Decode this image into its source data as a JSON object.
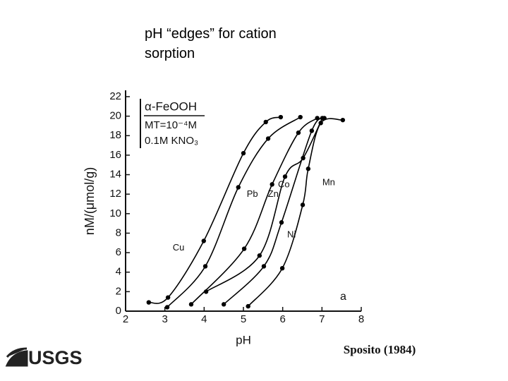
{
  "chart_data": {
    "type": "line",
    "title": "pH “edges” for cation sorption",
    "x_label": "pH",
    "y_label": "nM/(μmol/g)",
    "xlim": [
      2,
      8
    ],
    "xticks": [
      2,
      3,
      4,
      5,
      6,
      7,
      8
    ],
    "ylim": [
      0,
      22
    ],
    "yticks": [
      0,
      2,
      4,
      6,
      8,
      10,
      12,
      14,
      16,
      18,
      20,
      22
    ],
    "grid": false,
    "annotations": [
      "α-FeOOH",
      "MT=10⁻⁴M",
      "0.1M KNO₃",
      "a"
    ],
    "series": [
      {
        "name": "Cu",
        "color": "#000000",
        "x": [
          2.59,
          3.08,
          3.99,
          5.0,
          5.57,
          5.95
        ],
        "values": [
          0.9,
          1.4,
          7.2,
          16.2,
          19.4,
          19.9
        ]
      },
      {
        "name": "Pb",
        "color": "#000000",
        "x": [
          3.06,
          4.03,
          4.87,
          5.63,
          6.45
        ],
        "values": [
          0.4,
          4.6,
          12.7,
          17.7,
          19.9
        ]
      },
      {
        "name": "Zn",
        "color": "#000000",
        "x": [
          3.67,
          5.02,
          5.73,
          6.4,
          6.88
        ],
        "values": [
          0.7,
          6.4,
          13.0,
          18.3,
          19.8
        ]
      },
      {
        "name": "Co",
        "color": "#000000",
        "x": [
          4.05,
          5.41,
          6.06,
          6.52,
          7.01
        ],
        "values": [
          2.0,
          5.7,
          13.8,
          15.7,
          19.8
        ]
      },
      {
        "name": "Ni",
        "color": "#000000",
        "x": [
          4.5,
          5.52,
          5.97,
          6.74,
          7.06
        ],
        "values": [
          0.7,
          4.6,
          9.1,
          18.5,
          19.8
        ]
      },
      {
        "name": "Mn",
        "color": "#000000",
        "x": [
          5.12,
          5.99,
          6.51,
          6.65,
          6.97,
          7.53
        ],
        "values": [
          0.5,
          4.4,
          10.9,
          14.6,
          19.3,
          19.6
        ]
      }
    ]
  },
  "source": "Sposito (1984)",
  "logo": "USGS"
}
